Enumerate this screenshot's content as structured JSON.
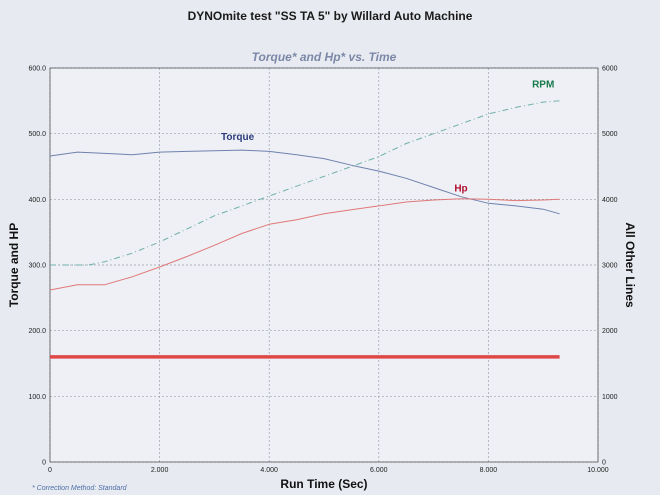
{
  "header": {
    "title": "DYNOmite test \"SS TA 5\" by Willard Auto Machine"
  },
  "footer": {
    "note": "* Correction Method: Standard"
  },
  "chart_data": {
    "type": "line",
    "title": "Torque* and Hp* vs. Time",
    "xlabel": "Run Time (Sec)",
    "ylabel": "Torque and HP",
    "y2label": "All Other Lines",
    "xlim": [
      0,
      10
    ],
    "ylim": [
      0,
      600
    ],
    "y2lim": [
      0,
      6000
    ],
    "grid": true,
    "x_ticks": [
      "0",
      "2.000",
      "4.000",
      "6.000",
      "8.000",
      "10.000"
    ],
    "y_ticks": [
      "0",
      "100.0",
      "200.0",
      "300.0",
      "400.0",
      "500.0",
      "600.0"
    ],
    "y2_ticks": [
      "0",
      "1000",
      "2000",
      "3000",
      "4000",
      "5000",
      "6000"
    ],
    "colors": {
      "torque": "#6f82ad",
      "hp": "#e07878",
      "rpm": "#6fb0a8",
      "baseline": "#e04848",
      "torque_label": "#2a3a7a",
      "hp_label": "#b01030",
      "rpm_label": "#157a4a"
    },
    "series": [
      {
        "name": "Torque",
        "axis": "left",
        "x": [
          0,
          0.5,
          1.0,
          1.5,
          2.0,
          2.5,
          3.0,
          3.5,
          4.0,
          4.5,
          5.0,
          5.5,
          6.0,
          6.5,
          7.0,
          7.5,
          8.0,
          8.5,
          9.0,
          9.3
        ],
        "y": [
          466,
          472,
          470,
          468,
          472,
          473,
          474,
          475,
          473,
          468,
          462,
          452,
          443,
          432,
          418,
          404,
          394,
          390,
          385,
          378
        ]
      },
      {
        "name": "Hp",
        "axis": "left",
        "x": [
          0,
          0.5,
          1.0,
          1.5,
          2.0,
          2.5,
          3.0,
          3.5,
          4.0,
          4.5,
          5.0,
          5.5,
          6.0,
          6.5,
          7.0,
          7.5,
          8.0,
          8.5,
          9.0,
          9.3
        ],
        "y": [
          262,
          270,
          270,
          282,
          297,
          313,
          330,
          348,
          362,
          369,
          378,
          384,
          390,
          396,
          399,
          401,
          400,
          398,
          399,
          400
        ]
      },
      {
        "name": "RPM",
        "axis": "right",
        "x": [
          0,
          0.7,
          1.0,
          1.5,
          2.0,
          2.5,
          3.0,
          3.5,
          4.0,
          4.5,
          5.0,
          5.5,
          6.0,
          6.5,
          7.0,
          7.5,
          8.0,
          8.5,
          9.0,
          9.3
        ],
        "y": [
          3000,
          3000,
          3050,
          3180,
          3350,
          3550,
          3750,
          3900,
          4050,
          4200,
          4350,
          4500,
          4650,
          4850,
          5000,
          5150,
          5300,
          5400,
          5480,
          5500
        ]
      },
      {
        "name": "",
        "axis": "left",
        "x": [
          0,
          9.3
        ],
        "y": [
          160,
          160
        ]
      }
    ]
  }
}
